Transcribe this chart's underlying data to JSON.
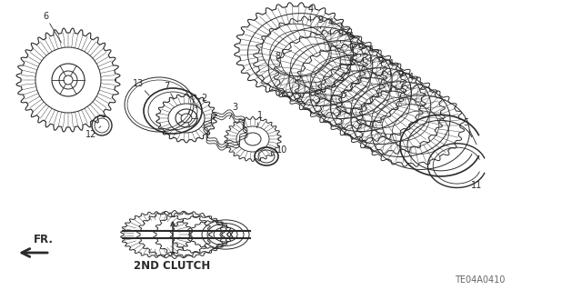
{
  "background_color": "#ffffff",
  "diagram_code": "TE04A0410",
  "fr_label": "FR.",
  "nd_clutch_label": "2ND CLUTCH",
  "line_color": "#2a2a2a",
  "label_fontsize": 7.0,
  "code_fontsize": 7.0,
  "nd_clutch_fontsize": 8.5,
  "fig_width": 6.4,
  "fig_height": 3.19,
  "dpi": 100
}
